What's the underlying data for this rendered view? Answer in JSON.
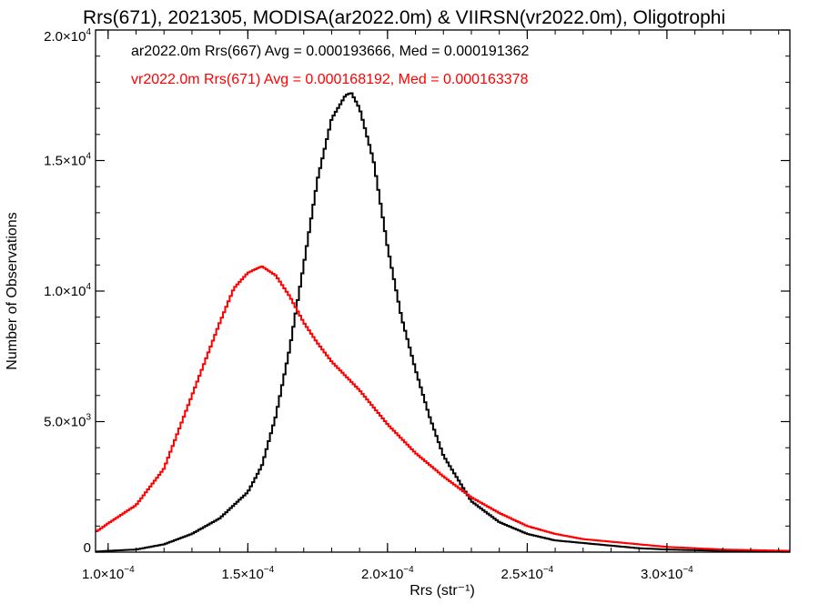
{
  "chart_data": {
    "type": "line",
    "title": "Rrs(671), 2021305, MODISA(ar2022.0m) & VIIRSN(vr2022.0m), Oligotrophi",
    "xlabel": "Rrs (str⁻¹)",
    "ylabel": "Number of Observations",
    "xlim": [
      9.55e-05,
      0.000344
    ],
    "ylim": [
      0,
      20000
    ],
    "grid": false,
    "legend_placement": "top-left",
    "xticks": [
      {
        "value": 0.0001,
        "mantissa": "1.0",
        "exp": "−4"
      },
      {
        "value": 0.00015,
        "mantissa": "1.5",
        "exp": "−4"
      },
      {
        "value": 0.0002,
        "mantissa": "2.0",
        "exp": "−4"
      },
      {
        "value": 0.00025,
        "mantissa": "2.5",
        "exp": "−4"
      },
      {
        "value": 0.0003,
        "mantissa": "3.0",
        "exp": "−4"
      }
    ],
    "yticks": [
      {
        "value": 0,
        "mantissa": "0",
        "exp": ""
      },
      {
        "value": 5000,
        "mantissa": "5.0",
        "exp": "3"
      },
      {
        "value": 10000,
        "mantissa": "1.0",
        "exp": "4"
      },
      {
        "value": 15000,
        "mantissa": "1.5",
        "exp": "4"
      },
      {
        "value": 20000,
        "mantissa": "2.0",
        "exp": "4"
      }
    ],
    "series": [
      {
        "name": "ar2022.0m Rrs(667)",
        "color": "#000000",
        "stats_text": "ar2022.0m Rrs(667) Avg = 0.000193666, Med = 0.000191362",
        "x": [
          9.6e-05,
          0.0001,
          0.00011,
          0.00012,
          0.00013,
          0.00014,
          0.00015,
          0.000155,
          0.00016,
          0.000165,
          0.00017,
          0.000175,
          0.00018,
          0.000185,
          0.000187,
          0.00019,
          0.000195,
          0.0002,
          0.000205,
          0.00021,
          0.000215,
          0.00022,
          0.00023,
          0.00024,
          0.00025,
          0.00026,
          0.00027,
          0.00028,
          0.00029,
          0.0003,
          0.00032,
          0.000344
        ],
        "values": [
          20,
          50,
          100,
          300,
          700,
          1300,
          2300,
          3300,
          5200,
          7800,
          11000,
          14300,
          16600,
          17500,
          17600,
          17000,
          15000,
          11700,
          9000,
          7000,
          5200,
          3700,
          1950,
          1150,
          700,
          450,
          350,
          250,
          150,
          100,
          50,
          20
        ]
      },
      {
        "name": "vr2022.0m Rrs(671)",
        "color": "#ff0000",
        "stats_text": "vr2022.0m Rrs(671) Avg = 0.000168192, Med = 0.000163378",
        "x": [
          9.6e-05,
          0.0001,
          0.00011,
          0.00012,
          0.00013,
          0.00014,
          0.000145,
          0.00015,
          0.000155,
          0.00016,
          0.000165,
          0.00017,
          0.000175,
          0.00018,
          0.00019,
          0.0002,
          0.00021,
          0.00022,
          0.00023,
          0.00024,
          0.00025,
          0.00026,
          0.00027,
          0.00028,
          0.00029,
          0.0003,
          0.00032,
          0.000344
        ],
        "values": [
          800,
          1100,
          1800,
          3200,
          6000,
          8800,
          10100,
          10700,
          10950,
          10600,
          9800,
          8800,
          8000,
          7300,
          6200,
          4900,
          3800,
          2900,
          2100,
          1500,
          1000,
          700,
          500,
          400,
          300,
          200,
          100,
          50
        ]
      }
    ]
  }
}
